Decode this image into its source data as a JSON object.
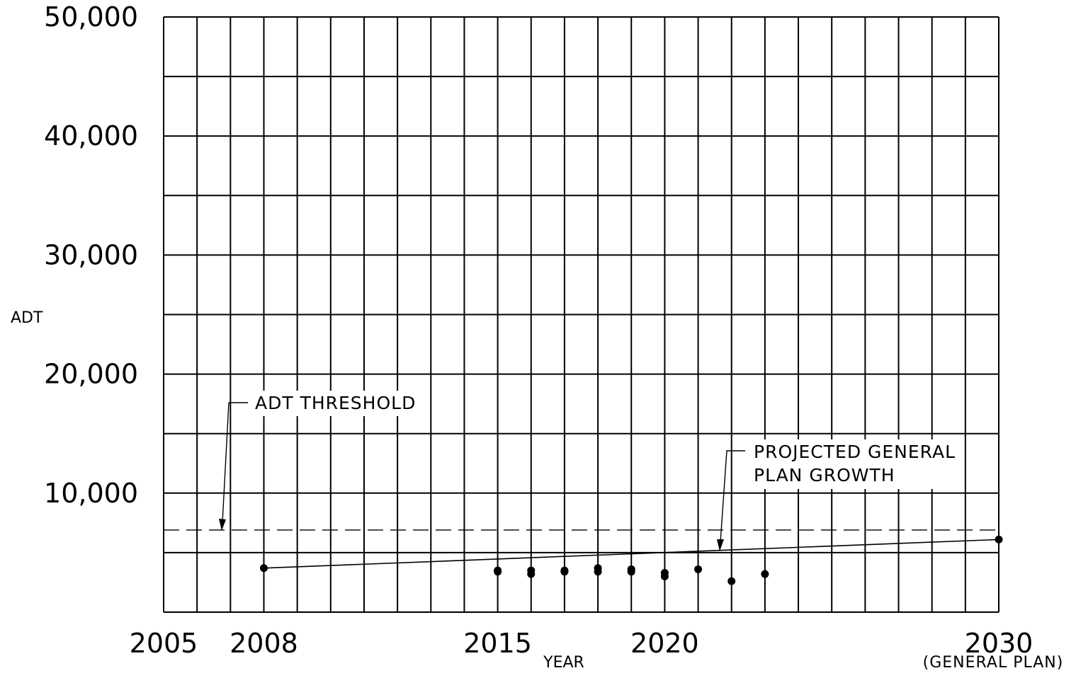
{
  "chart_data": {
    "type": "scatter",
    "ylabel": "ADT",
    "xlabel": "YEAR",
    "xlim": [
      2005,
      2030
    ],
    "ylim": [
      0,
      50000
    ],
    "grid": true,
    "x_minor_grid_step": 1,
    "y_minor_grid_step": 5000,
    "x_tick_labels": [
      {
        "value": 2005,
        "label": "2005"
      },
      {
        "value": 2008,
        "label": "2008"
      },
      {
        "value": 2015,
        "label": "2015"
      },
      {
        "value": 2020,
        "label": "2020"
      },
      {
        "value": 2030,
        "label": "2030",
        "sublabel": "(GENERAL PLAN)"
      }
    ],
    "y_tick_labels": [
      {
        "value": 10000,
        "label": "10,000"
      },
      {
        "value": 20000,
        "label": "20,000"
      },
      {
        "value": 30000,
        "label": "30,000"
      },
      {
        "value": 40000,
        "label": "40,000"
      },
      {
        "value": 50000,
        "label": "50,000"
      }
    ],
    "threshold": {
      "label": "ADT THRESHOLD",
      "value": 6900,
      "style": "dashed"
    },
    "growth_line": {
      "label_lines": [
        "PROJECTED GENERAL",
        "PLAN GROWTH"
      ],
      "x": [
        2008,
        2030
      ],
      "y": [
        3700,
        6100
      ]
    },
    "series": [
      {
        "points": [
          {
            "x": 2008,
            "y": 3700
          },
          {
            "x": 2015,
            "y": 3500
          },
          {
            "x": 2015,
            "y": 3400
          },
          {
            "x": 2016,
            "y": 3500
          },
          {
            "x": 2016,
            "y": 3200
          },
          {
            "x": 2017,
            "y": 3500
          },
          {
            "x": 2017,
            "y": 3400
          },
          {
            "x": 2018,
            "y": 3700
          },
          {
            "x": 2018,
            "y": 3400
          },
          {
            "x": 2019,
            "y": 3600
          },
          {
            "x": 2019,
            "y": 3400
          },
          {
            "x": 2020,
            "y": 3300
          },
          {
            "x": 2020,
            "y": 3000
          },
          {
            "x": 2021,
            "y": 3600
          },
          {
            "x": 2022,
            "y": 2600
          },
          {
            "x": 2023,
            "y": 3200
          },
          {
            "x": 2030,
            "y": 6100
          }
        ]
      }
    ]
  }
}
